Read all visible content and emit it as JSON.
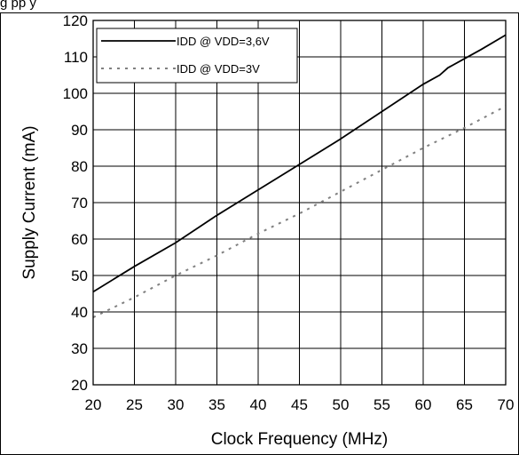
{
  "caption_fragment": "g       pp y",
  "chart_data": {
    "type": "line",
    "xlabel": "Clock Frequency (MHz)",
    "ylabel": "Supply Current (mA)",
    "xlim": [
      20,
      70
    ],
    "ylim": [
      20,
      120
    ],
    "xticks": [
      20,
      25,
      30,
      35,
      40,
      45,
      50,
      55,
      60,
      65,
      70
    ],
    "yticks": [
      20,
      30,
      40,
      50,
      60,
      70,
      80,
      90,
      100,
      110,
      120
    ],
    "grid": true,
    "legend_position": "top-left",
    "series": [
      {
        "name": "IDD @ VDD=3,6V",
        "style": "solid",
        "color": "#000000",
        "x": [
          20,
          25,
          30,
          35,
          40,
          45,
          50,
          55,
          60,
          62,
          63,
          65,
          67,
          70
        ],
        "y": [
          45.5,
          52.5,
          59,
          66.5,
          73.5,
          80.5,
          87.5,
          95,
          102.5,
          105,
          107,
          109.5,
          112,
          116
        ]
      },
      {
        "name": "IDD @ VDD=3V",
        "style": "dotted",
        "color": "#808080",
        "x": [
          20,
          25,
          30,
          35,
          40,
          45,
          50,
          55,
          60,
          65,
          70
        ],
        "y": [
          38.5,
          44,
          50,
          55.5,
          61.5,
          67,
          73,
          79,
          85,
          90.5,
          96.5
        ]
      }
    ]
  }
}
